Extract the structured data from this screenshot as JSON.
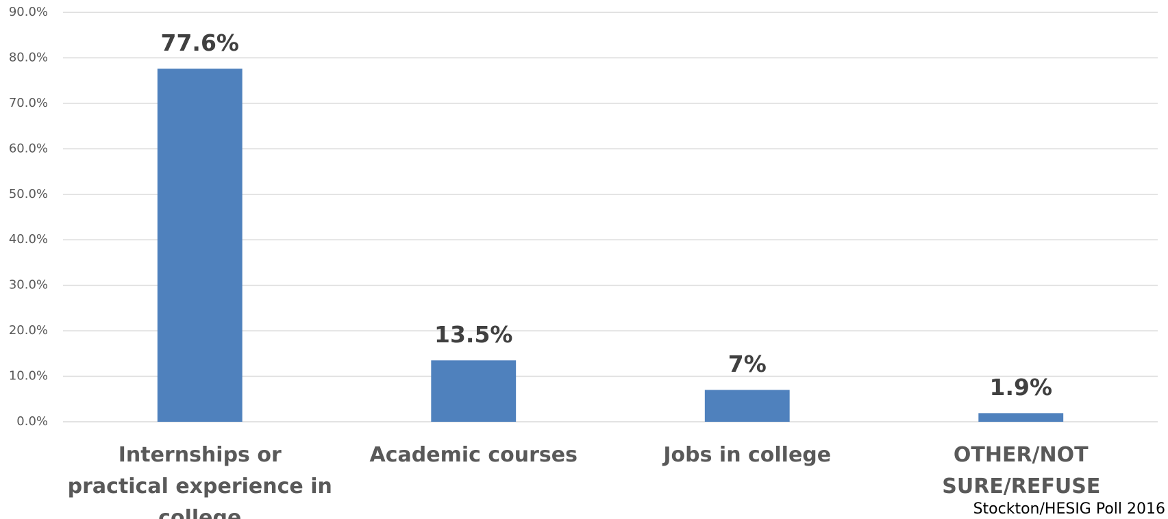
{
  "chart_data": {
    "type": "bar",
    "categories": [
      "Internships or practical experience in college",
      "Academic courses",
      "Jobs in college",
      "OTHER/NOT SURE/REFUSE"
    ],
    "values": [
      77.6,
      13.5,
      7,
      1.9
    ],
    "value_labels": [
      "77.6%",
      "13.5%",
      "7%",
      "1.9%"
    ],
    "color": "#4f81bd",
    "ylim": [
      0,
      90
    ],
    "yticks": [
      {
        "value": 0,
        "label": "0.0%"
      },
      {
        "value": 10,
        "label": "10.0%"
      },
      {
        "value": 20,
        "label": "20.0%"
      },
      {
        "value": 30,
        "label": "30.0%"
      },
      {
        "value": 40,
        "label": "40.0%"
      },
      {
        "value": 50,
        "label": "50.0%"
      },
      {
        "value": 60,
        "label": "60.0%"
      },
      {
        "value": 70,
        "label": "70.0%"
      },
      {
        "value": 80,
        "label": "80.0%"
      },
      {
        "value": 90,
        "label": "90.0%"
      }
    ],
    "grid": true,
    "source": "Stockton/HESIG Poll 2016"
  }
}
